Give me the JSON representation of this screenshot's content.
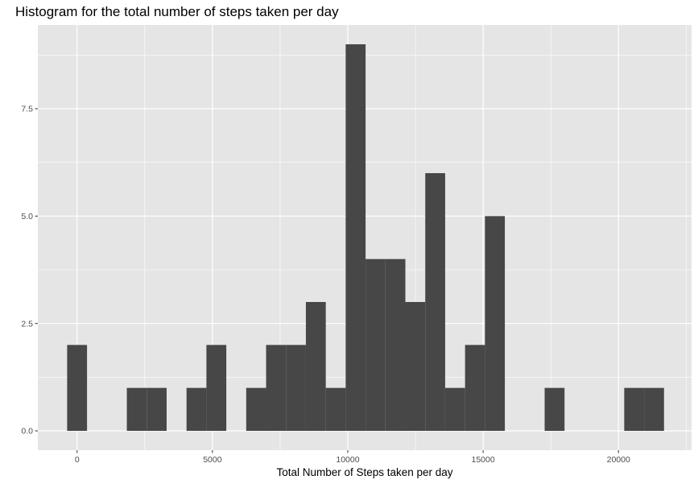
{
  "chart_data": {
    "type": "bar",
    "title": "Histogram for the total number of steps taken per day",
    "xlabel": "Total Number of Steps taken per day",
    "ylabel": "",
    "bin_width": 735,
    "bins": [
      {
        "center": 0,
        "count": 2
      },
      {
        "center": 2205,
        "count": 1
      },
      {
        "center": 2940,
        "count": 1
      },
      {
        "center": 4410,
        "count": 1
      },
      {
        "center": 5145,
        "count": 2
      },
      {
        "center": 6615,
        "count": 1
      },
      {
        "center": 7350,
        "count": 2
      },
      {
        "center": 8085,
        "count": 2
      },
      {
        "center": 8820,
        "count": 3
      },
      {
        "center": 9555,
        "count": 1
      },
      {
        "center": 10290,
        "count": 9
      },
      {
        "center": 11025,
        "count": 4
      },
      {
        "center": 11760,
        "count": 4
      },
      {
        "center": 12495,
        "count": 3
      },
      {
        "center": 13230,
        "count": 6
      },
      {
        "center": 13965,
        "count": 1
      },
      {
        "center": 14700,
        "count": 2
      },
      {
        "center": 15435,
        "count": 5
      },
      {
        "center": 17640,
        "count": 1
      },
      {
        "center": 20580,
        "count": 1
      },
      {
        "center": 21315,
        "count": 1
      }
    ],
    "xlim": [
      -1450,
      22700
    ],
    "ylim": [
      -0.45,
      9.45
    ],
    "x_ticks": [
      0,
      5000,
      10000,
      15000,
      20000
    ],
    "x_tick_labels": [
      "0",
      "5000",
      "10000",
      "15000",
      "20000"
    ],
    "y_ticks": [
      0,
      2.5,
      5,
      7.5
    ],
    "y_tick_labels": [
      "0.0",
      "2.5",
      "5.0",
      "7.5"
    ],
    "grid": true,
    "colors": {
      "panel": "#e5e5e5",
      "grid_major": "#ffffff",
      "bar": "#474747",
      "tick_text": "#4d4d4d"
    }
  }
}
